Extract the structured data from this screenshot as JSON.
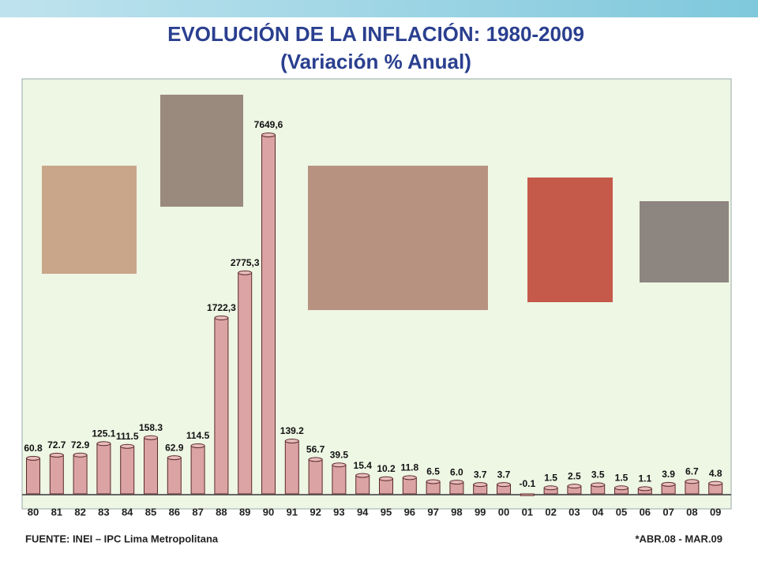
{
  "chart_data": {
    "type": "bar",
    "title": "EVOLUCIÓN DE LA INFLACIÓN: 1980-2009",
    "subtitle": "(Variación % Anual)",
    "categories": [
      "80",
      "81",
      "82",
      "83",
      "84",
      "85",
      "86",
      "87",
      "88",
      "89",
      "90",
      "91",
      "92",
      "93",
      "94",
      "95",
      "96",
      "97",
      "98",
      "99",
      "00",
      "01",
      "02",
      "03",
      "04",
      "05",
      "06",
      "07",
      "08",
      "09"
    ],
    "values": [
      60.8,
      72.7,
      72.9,
      125.1,
      111.5,
      158.3,
      62.9,
      114.5,
      1722.3,
      2775.3,
      7649.6,
      139.2,
      56.7,
      39.5,
      15.4,
      10.2,
      11.8,
      6.5,
      6.0,
      3.7,
      3.7,
      -0.1,
      1.5,
      2.5,
      3.5,
      1.5,
      1.1,
      3.9,
      6.7,
      4.8
    ],
    "value_labels": [
      "60.8",
      "72.7",
      "72.9",
      "125.1",
      "111.5",
      "158.3",
      "62.9",
      "114.5",
      "1722,3",
      "2775,3",
      "7649,6",
      "139.2",
      "56.7",
      "39.5",
      "15.4",
      "10.2",
      "11.8",
      "6.5",
      "6.0",
      "3.7",
      "3.7",
      "-0.1",
      "1.5",
      "2.5",
      "3.5",
      "1.5",
      "1.1",
      "3.9",
      "6.7",
      "4.8"
    ],
    "color": "#dba3a3",
    "source": "FUENTE: INEI – IPC Lima Metropolitana",
    "note": "*ABR.08 - MAR.09"
  }
}
